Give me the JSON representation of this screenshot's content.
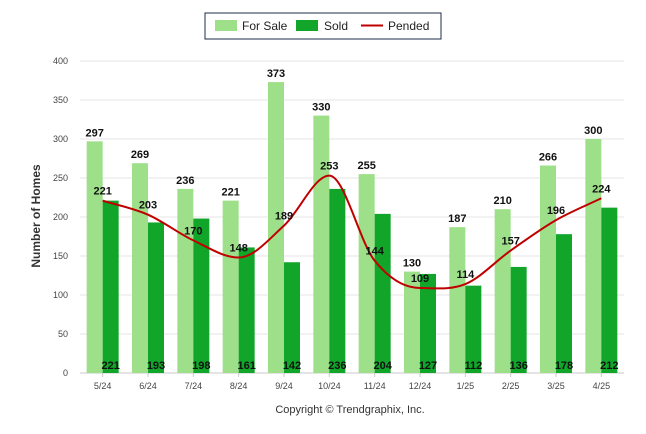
{
  "chart_data": {
    "type": "bar",
    "categories": [
      "5/24",
      "6/24",
      "7/24",
      "8/24",
      "9/24",
      "10/24",
      "11/24",
      "12/24",
      "1/25",
      "2/25",
      "3/25",
      "4/25"
    ],
    "series": [
      {
        "name": "For Sale",
        "type": "bar",
        "color": "#9ee08a",
        "values": [
          297,
          269,
          236,
          221,
          373,
          330,
          255,
          130,
          187,
          210,
          266,
          300
        ]
      },
      {
        "name": "Sold",
        "type": "bar",
        "color": "#11a52a",
        "values": [
          221,
          193,
          198,
          161,
          142,
          236,
          204,
          127,
          112,
          136,
          178,
          212
        ]
      },
      {
        "name": "Pended",
        "type": "line",
        "color": "#c00000",
        "values": [
          221,
          203,
          170,
          148,
          189,
          253,
          144,
          109,
          114,
          157,
          196,
          224
        ]
      }
    ],
    "ylabel": "Number of Homes",
    "ylim": [
      0,
      400
    ],
    "yticks": [
      "0",
      "50",
      "100",
      "150",
      "200",
      "250",
      "300",
      "350",
      "400"
    ],
    "grid": true,
    "legend_position": "top-center"
  },
  "footer": {
    "copyright": "Copyright © Trendgraphix, Inc."
  }
}
